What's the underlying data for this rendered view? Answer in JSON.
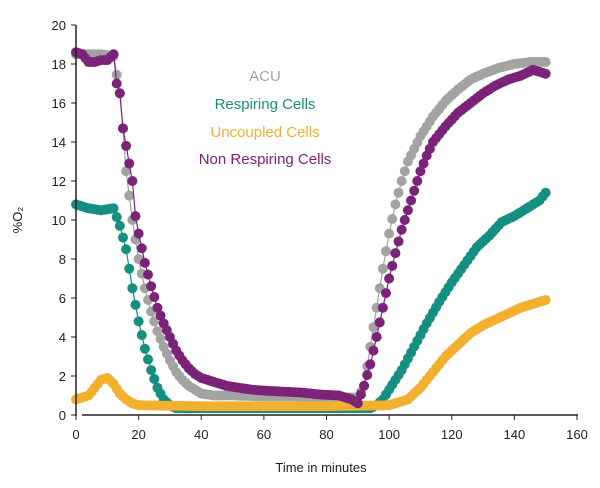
{
  "chart_data": {
    "type": "scatter",
    "xlabel": "Time in minutes",
    "ylabel": "%O₂",
    "xlim": [
      0,
      160
    ],
    "ylim": [
      0,
      20
    ],
    "xticks": [
      "0",
      "20",
      "40",
      "60",
      "80",
      "100",
      "120",
      "140",
      "160"
    ],
    "yticks": [
      "0",
      "2",
      "4",
      "6",
      "8",
      "10",
      "12",
      "14",
      "16",
      "18",
      "20"
    ],
    "grid": false,
    "legend_placement": "top-center",
    "series": [
      {
        "name": "ACU",
        "color": "#a3a3a3",
        "x": [
          0,
          4,
          8,
          12,
          14,
          15,
          16,
          18,
          20,
          22,
          24,
          26,
          28,
          30,
          32,
          34,
          36,
          38,
          40,
          44,
          50,
          60,
          70,
          80,
          90,
          92,
          94,
          96,
          98,
          100,
          102,
          104,
          106,
          110,
          114,
          118,
          122,
          126,
          130,
          135,
          140,
          145,
          150
        ],
        "y": [
          18.5,
          18.5,
          18.5,
          18.4,
          16.5,
          14.7,
          12.5,
          10,
          8,
          6.5,
          5.3,
          4.3,
          3.5,
          2.8,
          2.2,
          1.8,
          1.5,
          1.3,
          1.1,
          1.0,
          1.0,
          0.95,
          0.95,
          0.9,
          0.9,
          1.5,
          3.5,
          5.5,
          7.5,
          9.3,
          10.8,
          12,
          13,
          14.3,
          15.3,
          16.1,
          16.7,
          17.2,
          17.5,
          17.8,
          18,
          18.1,
          18.1
        ]
      },
      {
        "name": "Respiring Cells",
        "color": "#148f80",
        "x": [
          0,
          4,
          8,
          12,
          14,
          16,
          18,
          20,
          22,
          24,
          26,
          28,
          30,
          32,
          34,
          50,
          70,
          90,
          94,
          96,
          98,
          100,
          104,
          108,
          112,
          116,
          120,
          124,
          128,
          132,
          136,
          140,
          144,
          148,
          150
        ],
        "y": [
          10.8,
          10.6,
          10.5,
          10.6,
          9.7,
          8.5,
          6.5,
          4.8,
          3.4,
          2.3,
          1.4,
          0.8,
          0.5,
          0.35,
          0.35,
          0.35,
          0.35,
          0.35,
          0.35,
          0.5,
          0.8,
          1.3,
          2.3,
          3.5,
          4.7,
          5.8,
          6.8,
          7.7,
          8.6,
          9.2,
          9.9,
          10.2,
          10.6,
          11,
          11.4
        ]
      },
      {
        "name": "Uncoupled Cells",
        "color": "#f2b02e",
        "x": [
          0,
          4,
          6,
          8,
          10,
          12,
          14,
          16,
          18,
          20,
          40,
          60,
          80,
          100,
          102,
          106,
          110,
          114,
          118,
          122,
          126,
          130,
          134,
          138,
          142,
          146,
          150
        ],
        "y": [
          0.8,
          1.0,
          1.4,
          1.8,
          1.9,
          1.6,
          1.1,
          0.8,
          0.6,
          0.5,
          0.45,
          0.45,
          0.45,
          0.5,
          0.6,
          0.8,
          1.4,
          2.2,
          3.0,
          3.6,
          4.2,
          4.6,
          4.9,
          5.2,
          5.5,
          5.7,
          5.9
        ]
      },
      {
        "name": "Non Respiring Cells",
        "color": "#7a2378",
        "x": [
          0,
          2,
          4,
          6,
          8,
          10,
          12,
          13,
          14,
          15,
          16,
          18,
          19,
          20,
          22,
          24,
          26,
          28,
          30,
          32,
          34,
          36,
          38,
          40,
          44,
          48,
          52,
          56,
          60,
          66,
          72,
          78,
          84,
          88,
          90,
          92,
          94,
          96,
          98,
          100,
          102,
          104,
          106,
          108,
          110,
          112,
          114,
          118,
          122,
          126,
          130,
          134,
          138,
          142,
          146,
          150
        ],
        "y": [
          18.6,
          18.5,
          18.1,
          18.1,
          18.2,
          18.2,
          18.5,
          17,
          16.5,
          14.7,
          13.8,
          12,
          10.2,
          9.3,
          7.8,
          6.6,
          5.5,
          4.7,
          4.0,
          3.3,
          2.8,
          2.4,
          2.1,
          1.9,
          1.7,
          1.5,
          1.4,
          1.3,
          1.25,
          1.2,
          1.15,
          1.05,
          1.0,
          0.8,
          0.6,
          1.5,
          2.6,
          4,
          5.5,
          7,
          8.3,
          9.5,
          10.5,
          11.5,
          12.5,
          13.3,
          14,
          14.8,
          15.5,
          16,
          16.5,
          16.9,
          17.2,
          17.4,
          17.7,
          17.5
        ]
      }
    ]
  }
}
